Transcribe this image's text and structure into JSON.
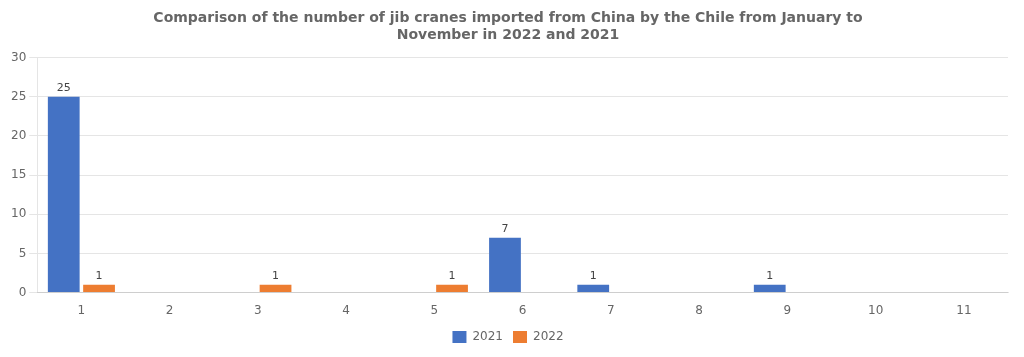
{
  "chart_data": {
    "type": "bar",
    "title": "Comparison of the number of jib cranes imported from China by the Chile from January to\nNovember in 2022 and 2021",
    "categories": [
      "1",
      "2",
      "3",
      "4",
      "5",
      "6",
      "7",
      "8",
      "9",
      "10",
      "11"
    ],
    "series": [
      {
        "name": "2021",
        "color": "#4472C4",
        "values": [
          25,
          0,
          0,
          0,
          0,
          7,
          1,
          0,
          1,
          0,
          0
        ],
        "value_labels": [
          "25",
          null,
          null,
          null,
          null,
          "7",
          "1",
          null,
          "1",
          null,
          null
        ]
      },
      {
        "name": "2022",
        "color": "#ED7D31",
        "values": [
          1,
          0,
          1,
          0,
          1,
          0,
          0,
          0,
          0,
          0,
          0
        ],
        "value_labels": [
          "1",
          null,
          "1",
          null,
          "1",
          null,
          null,
          null,
          null,
          null,
          null
        ]
      }
    ],
    "ylim": [
      0,
      30
    ],
    "yticks": [
      0,
      5,
      10,
      15,
      20,
      25,
      30
    ],
    "grid": true,
    "legend": "bottom",
    "data_labels": true
  }
}
